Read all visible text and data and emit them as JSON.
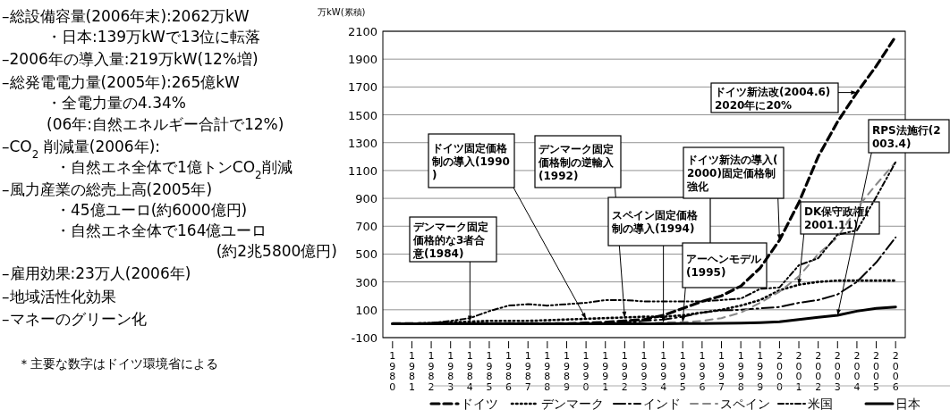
{
  "chart_data": {
    "type": "line",
    "ylabel": "万kW(累積)",
    "categories": [
      "1980",
      "1981",
      "1982",
      "1983",
      "1984",
      "1985",
      "1986",
      "1987",
      "1988",
      "1989",
      "1990",
      "1991",
      "1992",
      "1993",
      "1994",
      "1995",
      "1996",
      "1997",
      "1998",
      "1999",
      "2000",
      "2001",
      "2002",
      "2003",
      "2004",
      "2005",
      "2006"
    ],
    "series": [
      {
        "name": "ドイツ",
        "color": "#000000",
        "line_style": "dashed",
        "values": [
          0,
          0,
          0,
          0,
          0,
          0,
          0,
          0,
          0,
          0,
          5,
          10,
          20,
          30,
          60,
          110,
          160,
          200,
          270,
          400,
          600,
          870,
          1200,
          1450,
          1660,
          1850,
          2062
        ]
      },
      {
        "name": "デンマーク",
        "color": "#000000",
        "line_style": "dotted",
        "values": [
          0,
          0,
          5,
          10,
          15,
          20,
          20,
          20,
          25,
          30,
          35,
          40,
          45,
          50,
          50,
          60,
          80,
          100,
          130,
          170,
          240,
          280,
          300,
          310,
          310,
          310,
          310
        ]
      },
      {
        "name": "インド",
        "color": "#000000",
        "line_style": "dashed",
        "values": [
          0,
          0,
          0,
          0,
          0,
          0,
          0,
          0,
          0,
          0,
          0,
          0,
          10,
          20,
          30,
          50,
          80,
          95,
          100,
          110,
          120,
          150,
          170,
          210,
          300,
          440,
          620
        ]
      },
      {
        "name": "スペイン",
        "color": "#888888",
        "line_style": "dashed",
        "values": [
          0,
          0,
          0,
          0,
          0,
          0,
          0,
          0,
          0,
          0,
          0,
          0,
          0,
          0,
          10,
          10,
          20,
          40,
          80,
          150,
          230,
          340,
          500,
          620,
          830,
          1000,
          1160
        ]
      },
      {
        "name": "米国",
        "color": "#000000",
        "line_style": "dashed",
        "values": [
          0,
          0,
          5,
          20,
          40,
          90,
          130,
          140,
          130,
          140,
          150,
          170,
          170,
          160,
          160,
          160,
          160,
          170,
          180,
          250,
          260,
          420,
          470,
          640,
          670,
          910,
          1160
        ]
      },
      {
        "name": "日本",
        "color": "#000000",
        "line_style": "solid",
        "values": [
          0,
          0,
          0,
          0,
          0,
          0,
          0,
          0,
          0,
          0,
          0,
          0,
          0,
          0,
          0,
          1,
          1,
          2,
          4,
          8,
          14,
          30,
          46,
          60,
          90,
          110,
          120
        ]
      }
    ],
    "ylim": [
      -100,
      2100
    ],
    "yticks": [
      -100,
      100,
      300,
      500,
      700,
      900,
      1100,
      1300,
      1500,
      1700,
      1900,
      2100
    ],
    "grid": "y",
    "legend": "bottom",
    "annotations": [
      {
        "text": "デンマーク固定価格的な3者合意(1984)",
        "x": "1984",
        "y": 15
      },
      {
        "text": "ドイツ固定価格制の導入(1990)",
        "x": "1990",
        "y": 35
      },
      {
        "text": "デンマーク固定価格制の逆輸入(1992)",
        "x": "1992",
        "y": 45
      },
      {
        "text": "スペイン固定価格制の導入(1994)",
        "x": "1994",
        "y": 10
      },
      {
        "text": "アーヘンモデル(1995)",
        "x": "1995",
        "y": 10
      },
      {
        "text": "ドイツ新法の導入(2000)固定価格制強化",
        "x": "2000",
        "y": 600
      },
      {
        "text": "DK保守政権(2001.11)",
        "x": "2001",
        "y": 280
      },
      {
        "text": "ドイツ新法改(2004.6)2020年に20%",
        "x": "2004",
        "y": 1660
      },
      {
        "text": "RPS法施行(2003.4)",
        "x": "2003",
        "y": 60
      },
      "–総設備容量(2006年末):2062万kW",
      "・日本:139万kWで13位に転落",
      "–2006年の導入量:219万kW(12%増)",
      "–総発電電力量(2005年):265億kW",
      "・全電力量の4.34%",
      "(06年:自然エネルギー合計で12%)",
      "–CO$_{2}$ 削減量(2006年):",
      "・自然エネ全体で1億トンCO$_{2}$削減",
      "–風力産業の総売上高(2005年)",
      "・45億ユーロ(約6000億円)",
      "・自然エネ全体で164億ユーロ",
      "(約2兆5800億円)",
      "–雇用効果:23万人(2006年)",
      "–地域活性化効果",
      "–マネーのグリーン化",
      "＊主要な数字はドイツ環境省による"
    ]
  }
}
